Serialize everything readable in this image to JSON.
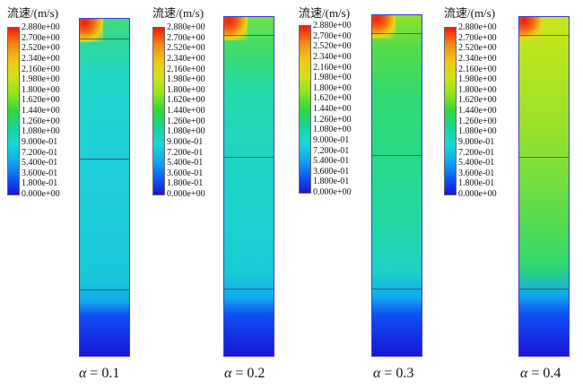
{
  "legend_title": "流速/(m/s)",
  "legend_ticks": [
    "2.880e+00",
    "2.700e+00",
    "2.520e+00",
    "2.340e+00",
    "2.160e+00",
    "1.980e+00",
    "1.800e+00",
    "1.620e+00",
    "1.440e+00",
    "1.260e+00",
    "1.080e+00",
    "9.000e-01",
    "7.200e-01",
    "5.400e-01",
    "3.600e-01",
    "1.800e-01",
    "0.000e+00"
  ],
  "panels": [
    {
      "caption_symbol": "α",
      "caption_text": "= 0.1"
    },
    {
      "caption_symbol": "α",
      "caption_text": "= 0.2"
    },
    {
      "caption_symbol": "α",
      "caption_text": "= 0.3"
    },
    {
      "caption_symbol": "α",
      "caption_text": "= 0.4"
    }
  ],
  "colors": {
    "low": "#1a14d9",
    "mid": "#2ed83a",
    "high": "#f21a0b"
  }
}
